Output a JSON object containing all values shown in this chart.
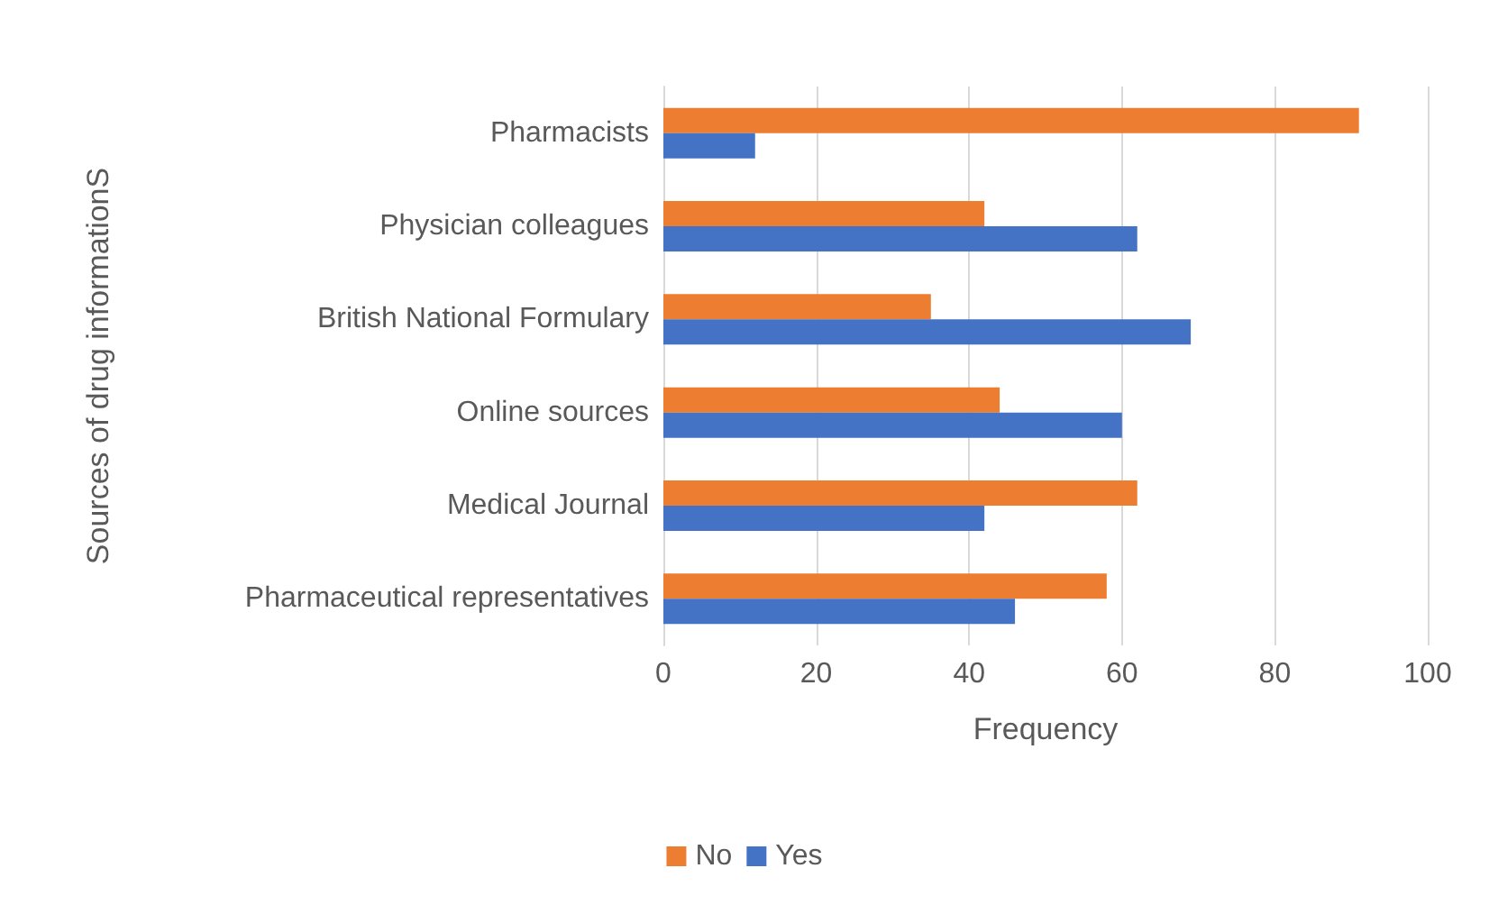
{
  "chart_data": {
    "type": "bar",
    "orientation": "horizontal",
    "xlabel": "Frequency",
    "ylabel": "Sources of drug informationS",
    "categories": [
      "Pharmacists",
      "Physician colleagues",
      "British National Formulary",
      "Online sources",
      "Medical Journal",
      "Pharmaceutical representatives"
    ],
    "series": [
      {
        "name": "No",
        "color": "#ed7d31",
        "values": [
          91,
          42,
          35,
          44,
          62,
          58
        ]
      },
      {
        "name": "Yes",
        "color": "#4472c4",
        "values": [
          12,
          62,
          69,
          60,
          42,
          46
        ]
      }
    ],
    "xlim": [
      0,
      100
    ],
    "xticks": [
      0,
      20,
      40,
      60,
      80,
      100
    ],
    "grid": "x",
    "legend": "bottom"
  }
}
